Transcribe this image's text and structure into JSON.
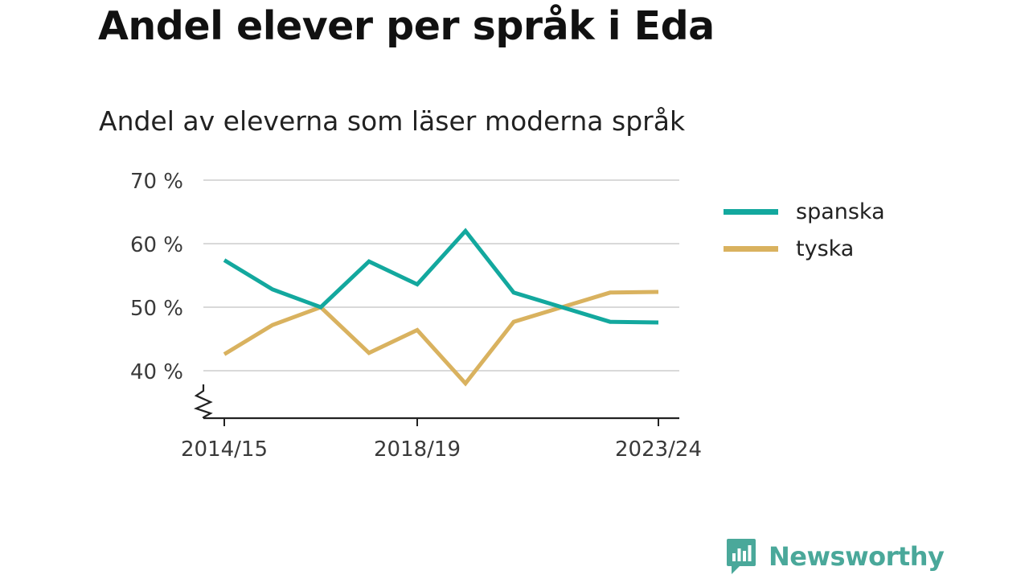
{
  "header": {
    "title": "Andel elever per språk i Eda",
    "subtitle": "Andel av eleverna som läser moderna språk"
  },
  "brand": {
    "name": "Newsworthy",
    "icon": "bar-chart-speech-bubble-icon",
    "color": "#4aa89a"
  },
  "chart_data": {
    "type": "line",
    "x": [
      "2014/15",
      "2015/16",
      "2016/17",
      "2017/18",
      "2018/19",
      "2019/20",
      "2020/21",
      "2021/22",
      "2022/23",
      "2023/24"
    ],
    "x_tick_labels": [
      "2014/15",
      "2018/19",
      "2023/24"
    ],
    "y_ticks": [
      "40 %",
      "50 %",
      "60 %",
      "70 %"
    ],
    "y_tick_values": [
      40,
      50,
      60,
      70
    ],
    "ylim": [
      32.5,
      70
    ],
    "y_axis_break": true,
    "grid": true,
    "legend_position": "right",
    "series": [
      {
        "name": "spanska",
        "color": "#13a89e",
        "values": [
          57.4,
          52.8,
          50.0,
          57.2,
          53.6,
          62.0,
          52.3,
          50.0,
          47.7,
          47.6
        ]
      },
      {
        "name": "tyska",
        "color": "#d9b25f",
        "values": [
          42.6,
          47.2,
          50.0,
          42.8,
          46.4,
          38.0,
          47.7,
          50.0,
          52.3,
          52.4
        ]
      }
    ]
  }
}
